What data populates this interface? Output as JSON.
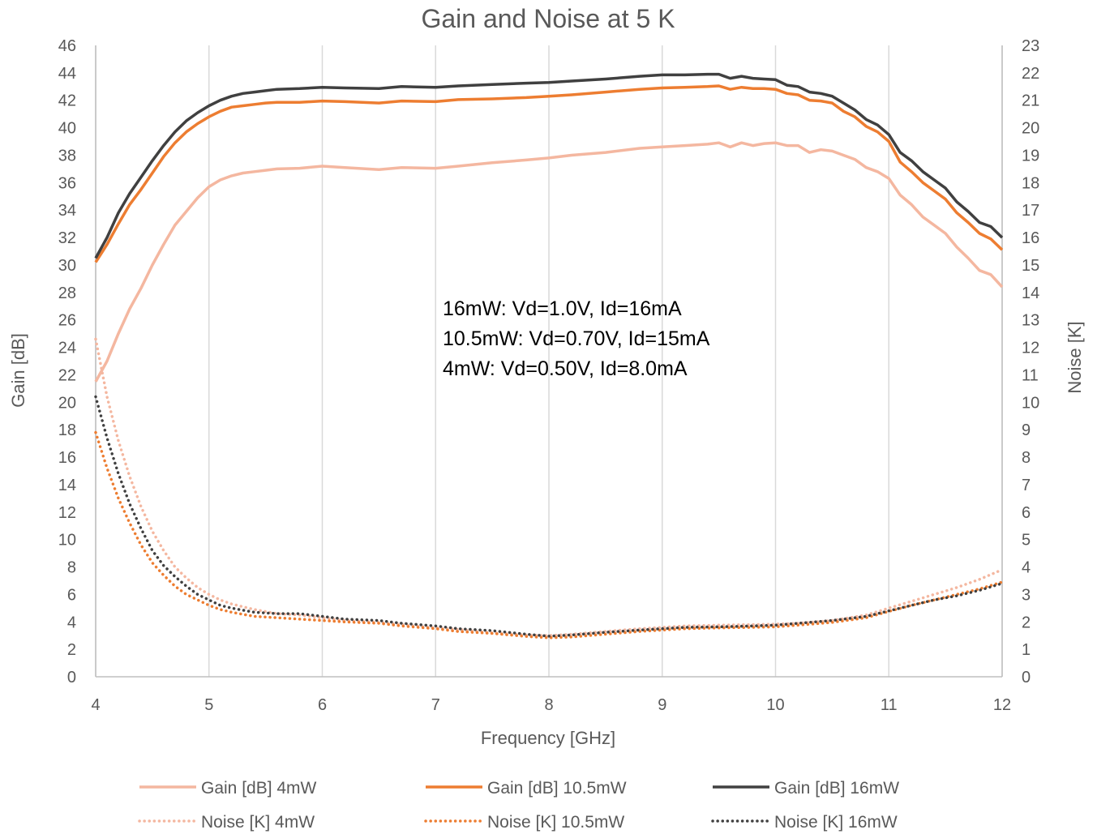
{
  "chart_data": {
    "type": "line",
    "title": "Gain and Noise at 5 K",
    "xlabel": "Frequency [GHz]",
    "ylabel": "Gain [dB]",
    "y2label": "Noise [K]",
    "xlim": [
      4,
      12
    ],
    "ylim": [
      0,
      46
    ],
    "y2lim": [
      0,
      23
    ],
    "x_ticks": [
      4,
      5,
      6,
      7,
      8,
      9,
      10,
      11,
      12
    ],
    "y_ticks": [
      0,
      2,
      4,
      6,
      8,
      10,
      12,
      14,
      16,
      18,
      20,
      22,
      24,
      26,
      28,
      30,
      32,
      34,
      36,
      38,
      40,
      42,
      44,
      46
    ],
    "y2_ticks": [
      0,
      1,
      2,
      3,
      4,
      5,
      6,
      7,
      8,
      9,
      10,
      11,
      12,
      13,
      14,
      15,
      16,
      17,
      18,
      19,
      20,
      21,
      22,
      23
    ],
    "grid": "vertical",
    "legend_position": "bottom",
    "annotations": [
      "16mW: Vd=1.0V, Id=16mA",
      "10.5mW: Vd=0.70V, Id=15mA",
      "4mW: Vd=0.50V, Id=8.0mA"
    ],
    "series": [
      {
        "name": "Gain [dB] 4mW",
        "axis": "left",
        "color": "#f4b7a0",
        "dash": "solid",
        "x": [
          4,
          4.1,
          4.2,
          4.3,
          4.4,
          4.5,
          4.6,
          4.7,
          4.8,
          4.9,
          5,
          5.1,
          5.2,
          5.3,
          5.4,
          5.5,
          5.6,
          5.8,
          6,
          6.2,
          6.5,
          6.7,
          7,
          7.2,
          7.5,
          7.8,
          8,
          8.2,
          8.5,
          8.8,
          9,
          9.2,
          9.4,
          9.5,
          9.6,
          9.7,
          9.8,
          9.9,
          10,
          10.1,
          10.2,
          10.3,
          10.4,
          10.5,
          10.6,
          10.7,
          10.8,
          10.9,
          11,
          11.1,
          11.2,
          11.3,
          11.4,
          11.5,
          11.6,
          11.7,
          11.8,
          11.9,
          12
        ],
        "y": [
          21.5,
          23,
          25,
          26.8,
          28.3,
          30,
          31.5,
          32.9,
          33.9,
          34.9,
          35.7,
          36.2,
          36.5,
          36.7,
          36.8,
          36.9,
          37,
          37.05,
          37.2,
          37.1,
          36.95,
          37.1,
          37.05,
          37.2,
          37.45,
          37.65,
          37.8,
          38,
          38.2,
          38.5,
          38.6,
          38.7,
          38.8,
          38.9,
          38.6,
          38.9,
          38.7,
          38.85,
          38.9,
          38.7,
          38.7,
          38.2,
          38.4,
          38.3,
          38.0,
          37.7,
          37.1,
          36.8,
          36.3,
          35.1,
          34.4,
          33.5,
          32.9,
          32.3,
          31.3,
          30.5,
          29.6,
          29.3,
          28.4
        ]
      },
      {
        "name": "Gain [dB] 10.5mW",
        "axis": "left",
        "color": "#ed7d31",
        "dash": "solid",
        "x": [
          4,
          4.1,
          4.2,
          4.3,
          4.4,
          4.5,
          4.6,
          4.7,
          4.8,
          4.9,
          5,
          5.1,
          5.2,
          5.3,
          5.4,
          5.5,
          5.6,
          5.8,
          6,
          6.2,
          6.5,
          6.7,
          7,
          7.2,
          7.5,
          7.8,
          8,
          8.2,
          8.5,
          8.8,
          9,
          9.2,
          9.4,
          9.5,
          9.6,
          9.7,
          9.8,
          9.9,
          10,
          10.1,
          10.2,
          10.3,
          10.4,
          10.5,
          10.6,
          10.7,
          10.8,
          10.9,
          11,
          11.1,
          11.2,
          11.3,
          11.4,
          11.5,
          11.6,
          11.7,
          11.8,
          11.9,
          12
        ],
        "y": [
          30.2,
          31.5,
          33,
          34.4,
          35.5,
          36.7,
          37.9,
          38.9,
          39.7,
          40.3,
          40.8,
          41.2,
          41.5,
          41.6,
          41.7,
          41.8,
          41.85,
          41.85,
          41.95,
          41.9,
          41.8,
          41.95,
          41.9,
          42.05,
          42.1,
          42.2,
          42.3,
          42.4,
          42.6,
          42.8,
          42.9,
          42.95,
          43.0,
          43.05,
          42.8,
          42.95,
          42.85,
          42.85,
          42.8,
          42.5,
          42.4,
          42.0,
          41.95,
          41.8,
          41.2,
          40.8,
          40.1,
          39.7,
          39.0,
          37.5,
          36.8,
          36.0,
          35.4,
          34.8,
          33.8,
          33.1,
          32.3,
          31.9,
          31.1
        ]
      },
      {
        "name": "Gain [dB] 16mW",
        "axis": "left",
        "color": "#404040",
        "dash": "solid",
        "x": [
          4,
          4.1,
          4.2,
          4.3,
          4.4,
          4.5,
          4.6,
          4.7,
          4.8,
          4.9,
          5,
          5.1,
          5.2,
          5.3,
          5.4,
          5.5,
          5.6,
          5.8,
          6,
          6.2,
          6.5,
          6.7,
          7,
          7.2,
          7.5,
          7.8,
          8,
          8.2,
          8.5,
          8.8,
          9,
          9.2,
          9.4,
          9.5,
          9.6,
          9.7,
          9.8,
          9.9,
          10,
          10.1,
          10.2,
          10.3,
          10.4,
          10.5,
          10.6,
          10.7,
          10.8,
          10.9,
          11,
          11.1,
          11.2,
          11.3,
          11.4,
          11.5,
          11.6,
          11.7,
          11.8,
          11.9,
          12
        ],
        "y": [
          30.5,
          32,
          33.8,
          35.2,
          36.4,
          37.6,
          38.7,
          39.7,
          40.5,
          41.1,
          41.6,
          42.0,
          42.3,
          42.5,
          42.6,
          42.7,
          42.8,
          42.85,
          42.95,
          42.9,
          42.85,
          43.0,
          42.95,
          43.05,
          43.15,
          43.25,
          43.3,
          43.4,
          43.55,
          43.75,
          43.85,
          43.85,
          43.9,
          43.9,
          43.6,
          43.75,
          43.6,
          43.55,
          43.5,
          43.1,
          43.0,
          42.6,
          42.5,
          42.3,
          41.8,
          41.3,
          40.6,
          40.2,
          39.5,
          38.2,
          37.6,
          36.8,
          36.2,
          35.6,
          34.6,
          33.9,
          33.1,
          32.8,
          32.0
        ]
      },
      {
        "name": "Noise [K] 4mW",
        "axis": "right",
        "color": "#f4b7a0",
        "dash": "dotted",
        "x": [
          4,
          4.1,
          4.2,
          4.3,
          4.4,
          4.5,
          4.6,
          4.7,
          4.8,
          4.9,
          5,
          5.1,
          5.2,
          5.4,
          5.6,
          5.8,
          6,
          6.2,
          6.5,
          6.7,
          7,
          7.2,
          7.5,
          7.8,
          8,
          8.2,
          8.5,
          8.8,
          9,
          9.2,
          9.5,
          9.8,
          10,
          10.2,
          10.5,
          10.8,
          11,
          11.2,
          11.4,
          11.6,
          11.8,
          12
        ],
        "y": [
          12.3,
          10.2,
          8.6,
          7.3,
          6.2,
          5.3,
          4.6,
          4.0,
          3.6,
          3.25,
          3.0,
          2.8,
          2.65,
          2.45,
          2.3,
          2.25,
          2.15,
          2.05,
          1.98,
          1.9,
          1.78,
          1.72,
          1.6,
          1.52,
          1.5,
          1.55,
          1.65,
          1.75,
          1.8,
          1.85,
          1.88,
          1.9,
          1.92,
          1.95,
          2.05,
          2.25,
          2.5,
          2.75,
          3.0,
          3.25,
          3.55,
          3.9
        ]
      },
      {
        "name": "Noise [K] 10.5mW",
        "axis": "right",
        "color": "#ed7d31",
        "dash": "dotted",
        "x": [
          4,
          4.1,
          4.2,
          4.3,
          4.4,
          4.5,
          4.6,
          4.7,
          4.8,
          4.9,
          5,
          5.1,
          5.2,
          5.4,
          5.6,
          5.8,
          6,
          6.2,
          6.5,
          6.7,
          7,
          7.2,
          7.5,
          7.8,
          8,
          8.2,
          8.5,
          8.8,
          9,
          9.2,
          9.5,
          9.8,
          10,
          10.2,
          10.5,
          10.8,
          11,
          11.2,
          11.4,
          11.6,
          11.8,
          12
        ],
        "y": [
          8.9,
          7.6,
          6.5,
          5.6,
          4.8,
          4.15,
          3.7,
          3.3,
          3.0,
          2.8,
          2.6,
          2.45,
          2.35,
          2.2,
          2.15,
          2.1,
          2.05,
          2.0,
          1.95,
          1.85,
          1.75,
          1.65,
          1.58,
          1.47,
          1.42,
          1.45,
          1.55,
          1.65,
          1.7,
          1.75,
          1.78,
          1.8,
          1.82,
          1.88,
          1.98,
          2.15,
          2.38,
          2.6,
          2.8,
          3.0,
          3.2,
          3.45
        ]
      },
      {
        "name": "Noise [K] 16mW",
        "axis": "right",
        "color": "#404040",
        "dash": "dotted",
        "x": [
          4,
          4.1,
          4.2,
          4.3,
          4.4,
          4.5,
          4.6,
          4.7,
          4.8,
          4.9,
          5,
          5.1,
          5.2,
          5.4,
          5.6,
          5.8,
          6,
          6.2,
          6.5,
          6.7,
          7,
          7.2,
          7.5,
          7.8,
          8,
          8.2,
          8.5,
          8.8,
          9,
          9.2,
          9.5,
          9.8,
          10,
          10.2,
          10.5,
          10.8,
          11,
          11.2,
          11.4,
          11.6,
          11.8,
          12
        ],
        "y": [
          10.2,
          8.7,
          7.4,
          6.3,
          5.4,
          4.6,
          4.05,
          3.65,
          3.3,
          3.0,
          2.8,
          2.6,
          2.5,
          2.35,
          2.3,
          2.3,
          2.2,
          2.1,
          2.05,
          1.95,
          1.85,
          1.75,
          1.68,
          1.55,
          1.48,
          1.52,
          1.62,
          1.7,
          1.75,
          1.8,
          1.82,
          1.85,
          1.88,
          1.95,
          2.05,
          2.2,
          2.4,
          2.6,
          2.8,
          2.95,
          3.15,
          3.4
        ]
      }
    ]
  }
}
